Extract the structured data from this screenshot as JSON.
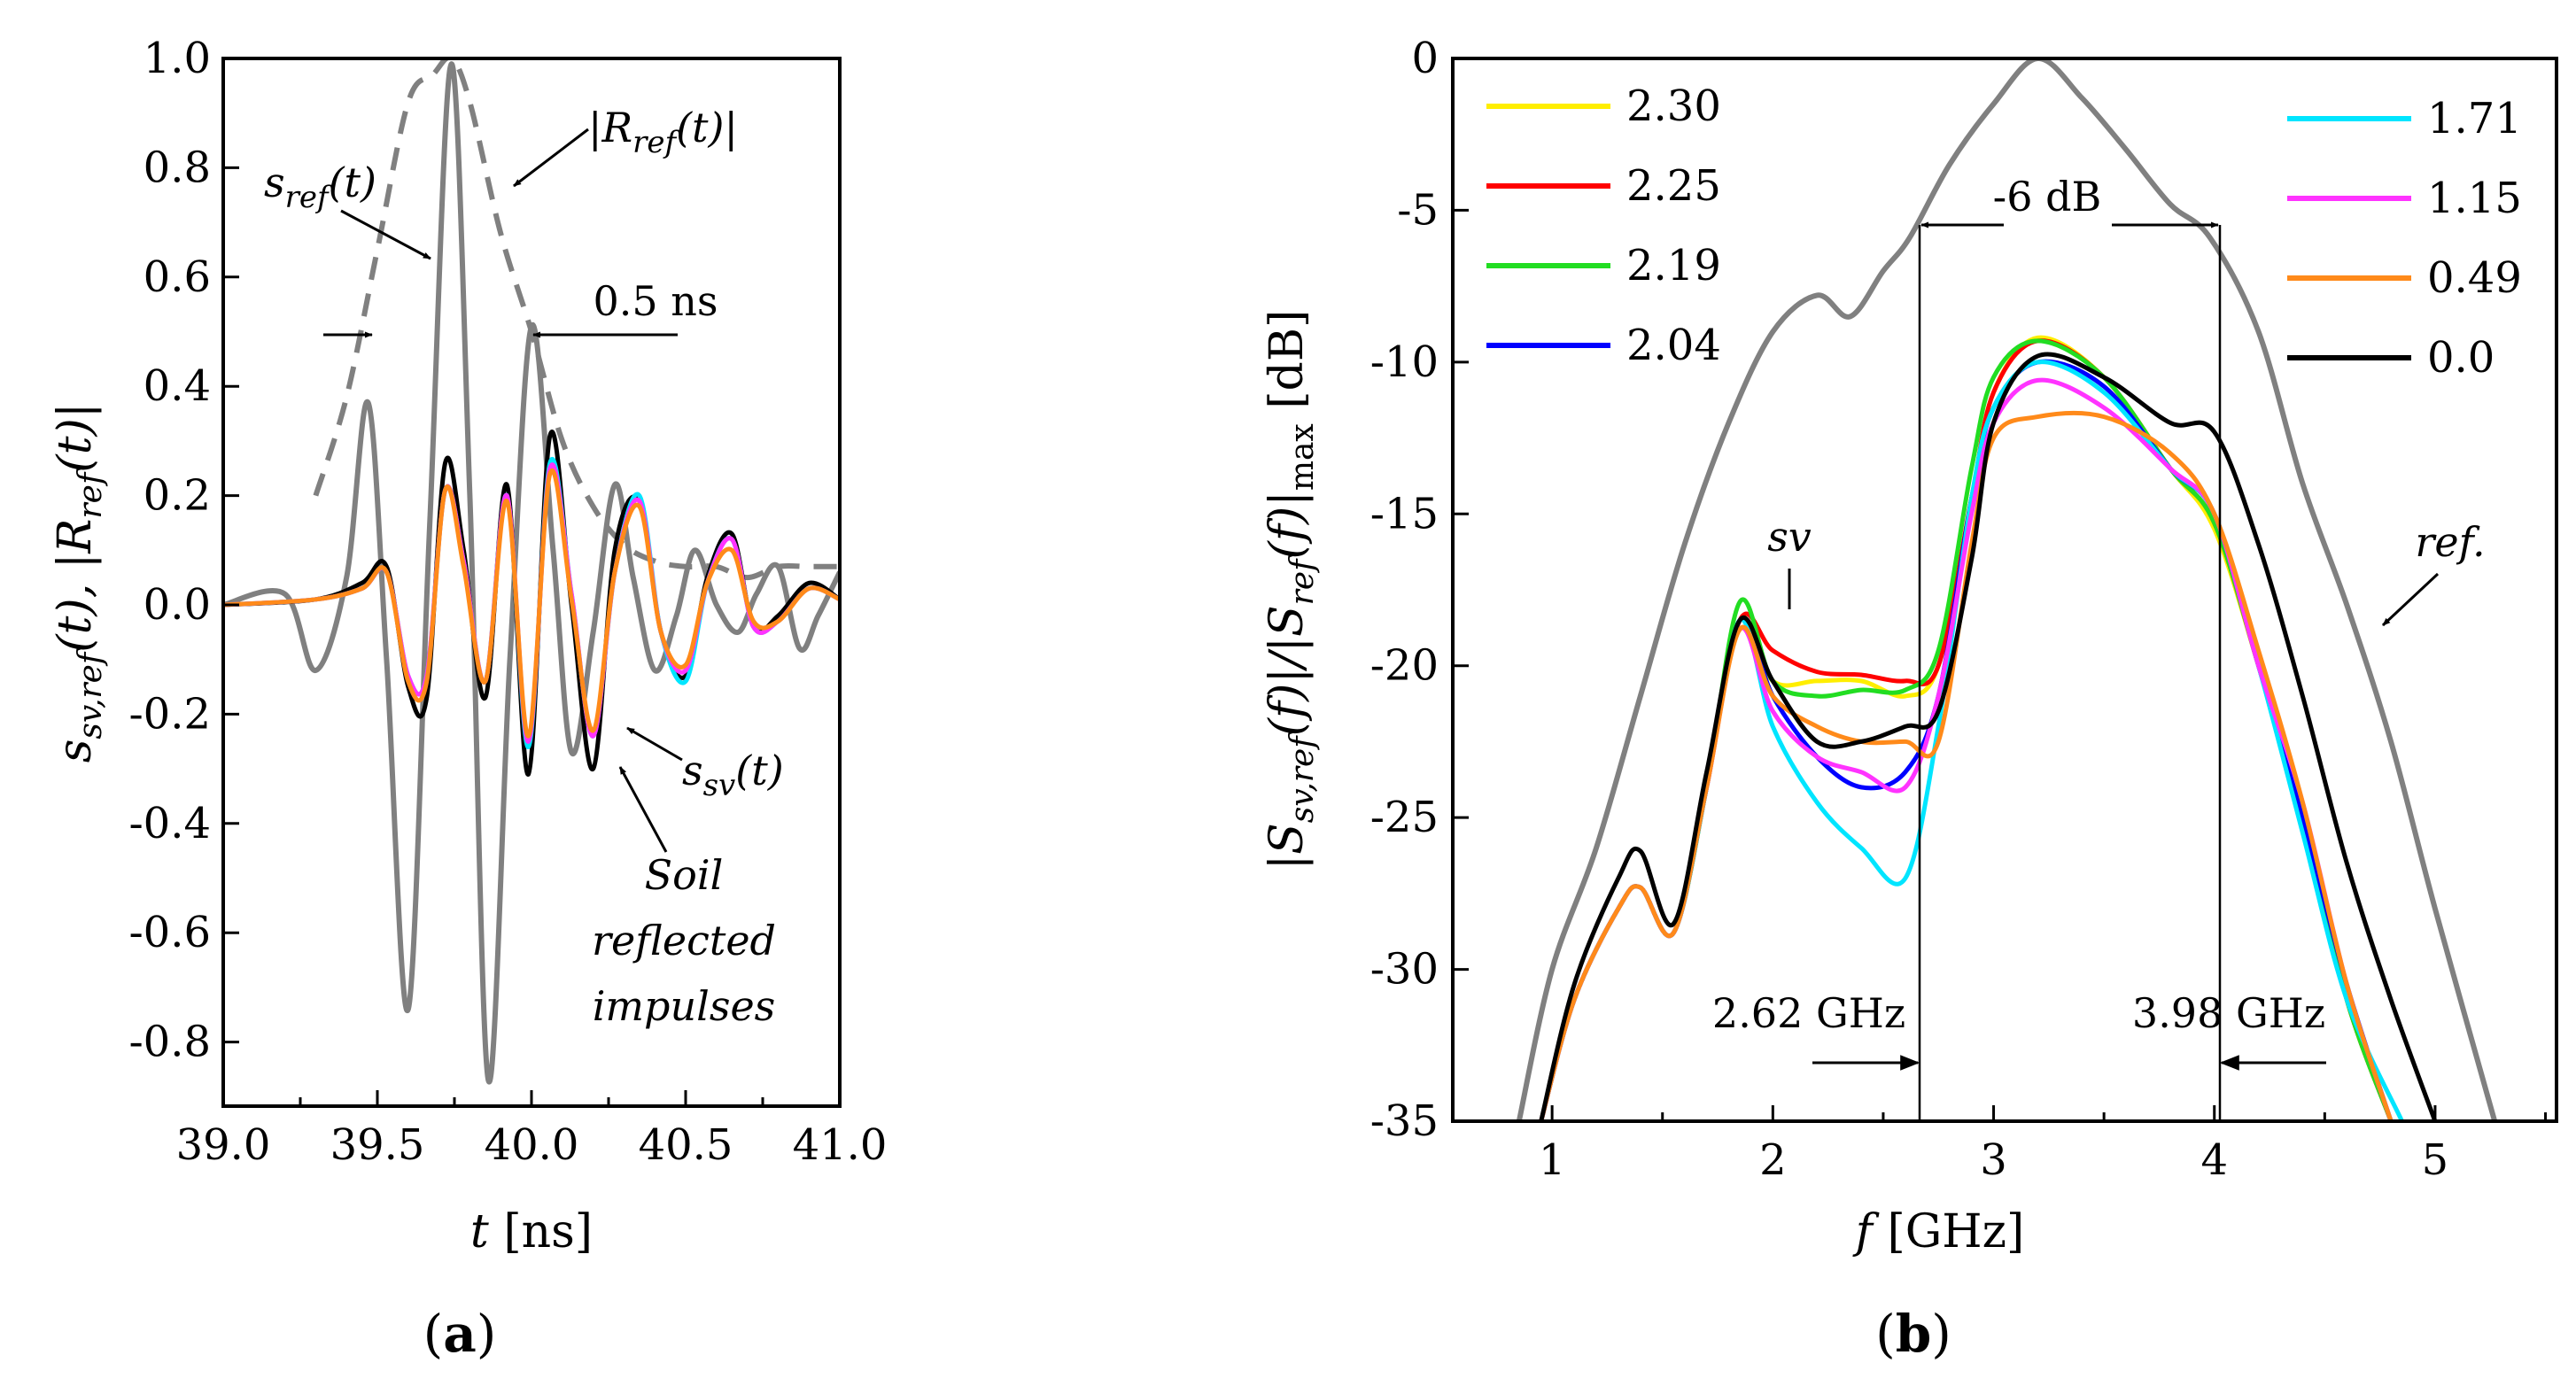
{
  "chart_data": [
    {
      "panel": "(a)",
      "type": "line",
      "xlabel": {
        "var": "t",
        "unit": "[ns]"
      },
      "ylabel": "s_sv,ref(t), |R_ref(t)|",
      "xlim": [
        39.0,
        41.0
      ],
      "ylim": [
        -0.9,
        1.0
      ],
      "xticks": [
        "39.0",
        "39.5",
        "40.0",
        "40.5",
        "41.0"
      ],
      "yticks": [
        "1.0",
        "0.8",
        "0.6",
        "0.4",
        "0.2",
        "0.0",
        "-0.2",
        "-0.4",
        "-0.6",
        "-0.8"
      ],
      "annotations": {
        "s_ref": "s_ref(t)",
        "r_ref": "|R_ref(t)|",
        "width": "0.5 ns",
        "s_sv": "s_sv(t)",
        "soil_1": "Soil",
        "soil_2": "reflected",
        "soil_3": "impulses"
      },
      "series": [
        {
          "key": "ref",
          "color": "#808080",
          "dashed": false,
          "x": [
            39.0,
            39.2,
            39.3,
            39.4,
            39.47,
            39.53,
            39.6,
            39.67,
            39.74,
            39.8,
            39.86,
            39.93,
            40.0,
            40.07,
            40.13,
            40.2,
            40.27,
            40.33,
            40.4,
            40.47,
            40.53,
            40.6,
            40.67,
            40.73,
            40.8,
            40.87,
            40.93,
            41.0
          ],
          "y": [
            0.0,
            0.02,
            -0.12,
            0.05,
            0.37,
            -0.1,
            -0.74,
            0.15,
            0.99,
            0.2,
            -0.87,
            -0.1,
            0.51,
            0.1,
            -0.27,
            -0.05,
            0.22,
            0.05,
            -0.12,
            -0.02,
            0.1,
            0.0,
            -0.05,
            0.02,
            0.07,
            -0.08,
            -0.02,
            0.06
          ]
        },
        {
          "key": "envelope",
          "color": "#808080",
          "dashed": true,
          "x": [
            39.3,
            39.4,
            39.5,
            39.6,
            39.68,
            39.74,
            39.8,
            39.9,
            40.0,
            40.1,
            40.2,
            40.3,
            40.4,
            40.5,
            40.6,
            40.7,
            40.8,
            40.9,
            41.0
          ],
          "y": [
            0.2,
            0.38,
            0.65,
            0.92,
            0.97,
            1.0,
            0.92,
            0.68,
            0.5,
            0.3,
            0.18,
            0.11,
            0.08,
            0.07,
            0.07,
            0.05,
            0.07,
            0.07,
            0.07
          ]
        },
        {
          "key": "0.0",
          "color": "#000000",
          "dashed": false,
          "x": [
            39.0,
            39.3,
            39.45,
            39.53,
            39.6,
            39.66,
            39.72,
            39.78,
            39.85,
            39.92,
            39.99,
            40.06,
            40.13,
            40.2,
            40.27,
            40.35,
            40.42,
            40.5,
            40.57,
            40.65,
            40.72,
            40.8,
            40.9,
            41.0
          ],
          "y": [
            0.0,
            0.01,
            0.04,
            0.07,
            -0.15,
            -0.17,
            0.26,
            0.1,
            -0.17,
            0.22,
            -0.31,
            0.31,
            0.0,
            -0.3,
            0.1,
            0.19,
            -0.05,
            -0.13,
            0.05,
            0.13,
            -0.04,
            -0.02,
            0.04,
            0.01
          ]
        },
        {
          "key": "cyan",
          "color": "#00e5ff",
          "dashed": false,
          "x": [
            39.0,
            39.3,
            39.45,
            39.53,
            39.6,
            39.66,
            39.72,
            39.78,
            39.85,
            39.92,
            39.99,
            40.06,
            40.13,
            40.2,
            40.27,
            40.35,
            40.42,
            40.5,
            40.57,
            40.65,
            40.72,
            40.8,
            40.9,
            41.0
          ],
          "y": [
            0.0,
            0.01,
            0.03,
            0.06,
            -0.13,
            -0.13,
            0.21,
            0.08,
            -0.14,
            0.2,
            -0.26,
            0.26,
            0.02,
            -0.24,
            0.06,
            0.2,
            -0.05,
            -0.14,
            0.04,
            0.12,
            -0.04,
            -0.03,
            0.03,
            0.01
          ]
        },
        {
          "key": "magenta",
          "color": "#ff33ff",
          "dashed": false,
          "x": [
            39.0,
            39.3,
            39.45,
            39.53,
            39.6,
            39.66,
            39.72,
            39.78,
            39.85,
            39.92,
            39.99,
            40.06,
            40.13,
            40.2,
            40.27,
            40.35,
            40.42,
            40.5,
            40.57,
            40.65,
            40.72,
            40.8,
            40.9,
            41.0
          ],
          "y": [
            0.0,
            0.01,
            0.03,
            0.06,
            -0.13,
            -0.13,
            0.21,
            0.08,
            -0.14,
            0.2,
            -0.25,
            0.25,
            0.02,
            -0.24,
            0.06,
            0.19,
            -0.05,
            -0.12,
            0.04,
            0.12,
            -0.04,
            -0.03,
            0.03,
            0.01
          ]
        },
        {
          "key": "orange",
          "color": "#ff8a1a",
          "dashed": false,
          "x": [
            39.0,
            39.3,
            39.45,
            39.53,
            39.6,
            39.66,
            39.72,
            39.78,
            39.85,
            39.92,
            39.99,
            40.06,
            40.13,
            40.2,
            40.27,
            40.35,
            40.42,
            40.5,
            40.57,
            40.65,
            40.72,
            40.8,
            40.9,
            41.0
          ],
          "y": [
            0.0,
            0.01,
            0.03,
            0.06,
            -0.14,
            -0.14,
            0.21,
            0.07,
            -0.14,
            0.19,
            -0.24,
            0.24,
            0.01,
            -0.23,
            0.06,
            0.18,
            -0.05,
            -0.11,
            0.04,
            0.1,
            -0.03,
            -0.03,
            0.03,
            0.01
          ]
        }
      ]
    },
    {
      "panel": "(b)",
      "type": "line",
      "xlabel": {
        "var": "f",
        "unit": "[GHz]"
      },
      "ylabel": "|S_sv,ref(f)|/|S_ref(f)|max [dB]",
      "xlim": [
        0.55,
        5.55
      ],
      "ylim": [
        -35,
        0
      ],
      "xticks": [
        "1",
        "2",
        "3",
        "4",
        "5"
      ],
      "yticks": [
        "0",
        "-5",
        "-10",
        "-15",
        "-20",
        "-25",
        "-30",
        "-35"
      ],
      "annotations": {
        "sv": "sv",
        "ref": "ref.",
        "bandwidth": "-6 dB",
        "f_low": "2.62 GHz",
        "f_high": "3.98 GHz"
      },
      "legend_left": [
        {
          "label": "2.30",
          "color": "#ffee00"
        },
        {
          "label": "2.25",
          "color": "#ff0000"
        },
        {
          "label": "2.19",
          "color": "#22dd22"
        },
        {
          "label": "2.04",
          "color": "#0000ff"
        }
      ],
      "legend_right": [
        {
          "label": "1.71",
          "color": "#00e5ff"
        },
        {
          "label": "1.15",
          "color": "#ff33ff"
        },
        {
          "label": "0.49",
          "color": "#ff8a1a"
        },
        {
          "label": "0.0",
          "color": "#000000"
        }
      ],
      "series": [
        {
          "key": "ref.",
          "color": "#808080",
          "x": [
            0.85,
            1.0,
            1.2,
            1.4,
            1.6,
            1.8,
            2.0,
            2.2,
            2.35,
            2.5,
            2.62,
            2.8,
            3.0,
            3.2,
            3.4,
            3.6,
            3.8,
            3.98,
            4.2,
            4.4,
            4.6,
            4.8,
            5.0,
            5.27
          ],
          "y": [
            -35,
            -30,
            -26,
            -21,
            -16,
            -12,
            -9,
            -7.8,
            -8.5,
            -7,
            -5.9,
            -3.5,
            -1.5,
            0,
            -1.3,
            -3,
            -4.8,
            -5.9,
            -9,
            -14,
            -18,
            -22.5,
            -28,
            -35
          ]
        },
        {
          "key": "2.30",
          "color": "#ffee00",
          "x": [
            0.95,
            1.1,
            1.3,
            1.4,
            1.55,
            1.7,
            1.85,
            2.0,
            2.2,
            2.4,
            2.6,
            2.75,
            2.9,
            3.0,
            3.2,
            3.5,
            3.8,
            4.0,
            4.2,
            4.4,
            4.6,
            4.8
          ],
          "y": [
            -35,
            -31,
            -28,
            -27.3,
            -28.8,
            -24,
            -18.5,
            -20.5,
            -20.5,
            -20.5,
            -21,
            -20,
            -14.5,
            -11,
            -9.2,
            -10.5,
            -13.5,
            -15.5,
            -20,
            -25,
            -31,
            -35
          ]
        },
        {
          "key": "2.25",
          "color": "#ff0000",
          "x": [
            0.95,
            1.1,
            1.3,
            1.4,
            1.55,
            1.7,
            1.85,
            2.0,
            2.2,
            2.4,
            2.6,
            2.75,
            2.9,
            3.0,
            3.2,
            3.5,
            3.8,
            4.0,
            4.2,
            4.4,
            4.6,
            4.8
          ],
          "y": [
            -35,
            -31,
            -28,
            -27.3,
            -28.8,
            -24,
            -18.5,
            -19.5,
            -20.2,
            -20.3,
            -20.5,
            -20,
            -14.5,
            -11,
            -9.3,
            -10.5,
            -13.5,
            -15.3,
            -20,
            -25,
            -31,
            -35
          ]
        },
        {
          "key": "2.19",
          "color": "#22dd22",
          "x": [
            0.95,
            1.1,
            1.3,
            1.4,
            1.55,
            1.7,
            1.85,
            2.0,
            2.2,
            2.4,
            2.6,
            2.75,
            2.9,
            3.0,
            3.2,
            3.5,
            3.8,
            4.0,
            4.2,
            4.4,
            4.6,
            4.8
          ],
          "y": [
            -35,
            -31,
            -28,
            -27.3,
            -28.8,
            -24,
            -17.9,
            -20.5,
            -21,
            -20.8,
            -20.8,
            -19.5,
            -13.5,
            -10.5,
            -9.3,
            -10.5,
            -13.5,
            -15.3,
            -20,
            -25,
            -31,
            -35
          ]
        },
        {
          "key": "2.04",
          "color": "#0000ff",
          "x": [
            0.95,
            1.1,
            1.3,
            1.4,
            1.55,
            1.7,
            1.85,
            2.0,
            2.2,
            2.4,
            2.6,
            2.75,
            2.9,
            3.0,
            3.2,
            3.5,
            3.8,
            4.0,
            4.2,
            4.4,
            4.6,
            4.8
          ],
          "y": [
            -35,
            -31,
            -28,
            -27.3,
            -28.8,
            -24,
            -18.5,
            -21,
            -23,
            -24,
            -23.5,
            -21,
            -14.5,
            -11.5,
            -10,
            -10.8,
            -13.5,
            -15,
            -20,
            -25,
            -30.5,
            -35
          ]
        },
        {
          "key": "1.71",
          "color": "#00e5ff",
          "x": [
            0.95,
            1.1,
            1.3,
            1.4,
            1.55,
            1.7,
            1.85,
            2.0,
            2.2,
            2.4,
            2.6,
            2.75,
            2.9,
            3.0,
            3.2,
            3.5,
            3.8,
            4.0,
            4.2,
            4.4,
            4.6,
            4.85
          ],
          "y": [
            -35,
            -31,
            -28,
            -27.3,
            -28.8,
            -24,
            -18.5,
            -22,
            -24.5,
            -26,
            -27,
            -22,
            -14.5,
            -11.5,
            -10,
            -11,
            -13.5,
            -15,
            -20,
            -25.5,
            -31,
            -35
          ]
        },
        {
          "key": "1.15",
          "color": "#ff33ff",
          "x": [
            0.95,
            1.1,
            1.3,
            1.4,
            1.55,
            1.7,
            1.85,
            2.0,
            2.2,
            2.4,
            2.6,
            2.75,
            2.9,
            3.0,
            3.2,
            3.5,
            3.8,
            4.0,
            4.2,
            4.4,
            4.6,
            4.8
          ],
          "y": [
            -35,
            -31,
            -28,
            -27.3,
            -28.8,
            -24,
            -18.8,
            -21.5,
            -23,
            -23.5,
            -24,
            -21,
            -15,
            -12,
            -10.6,
            -11.5,
            -13.5,
            -15,
            -20,
            -24.5,
            -30.5,
            -35
          ]
        },
        {
          "key": "0.49",
          "color": "#ff8a1a",
          "x": [
            0.95,
            1.1,
            1.3,
            1.4,
            1.55,
            1.7,
            1.85,
            2.0,
            2.2,
            2.4,
            2.6,
            2.75,
            2.9,
            3.0,
            3.2,
            3.5,
            3.8,
            4.0,
            4.2,
            4.4,
            4.6,
            4.8
          ],
          "y": [
            -35,
            -31,
            -28,
            -27.3,
            -28.8,
            -24,
            -18.8,
            -21,
            -22,
            -22.5,
            -22.5,
            -22.5,
            -16,
            -12.5,
            -11.8,
            -11.8,
            -13,
            -15,
            -19.5,
            -24.5,
            -30.5,
            -35
          ]
        },
        {
          "key": "0.0",
          "color": "#000000",
          "x": [
            0.95,
            1.1,
            1.3,
            1.4,
            1.55,
            1.7,
            1.85,
            2.0,
            2.2,
            2.4,
            2.6,
            2.75,
            2.9,
            3.0,
            3.2,
            3.5,
            3.8,
            4.0,
            4.2,
            4.4,
            4.6,
            4.8,
            5.0
          ],
          "y": [
            -35,
            -30.5,
            -27,
            -26.1,
            -28.5,
            -23.5,
            -18.5,
            -20.5,
            -22.5,
            -22.5,
            -22,
            -21.5,
            -16.5,
            -12,
            -9.8,
            -10.5,
            -12,
            -12.3,
            -16,
            -21,
            -26.5,
            -31,
            -35
          ]
        }
      ]
    }
  ]
}
